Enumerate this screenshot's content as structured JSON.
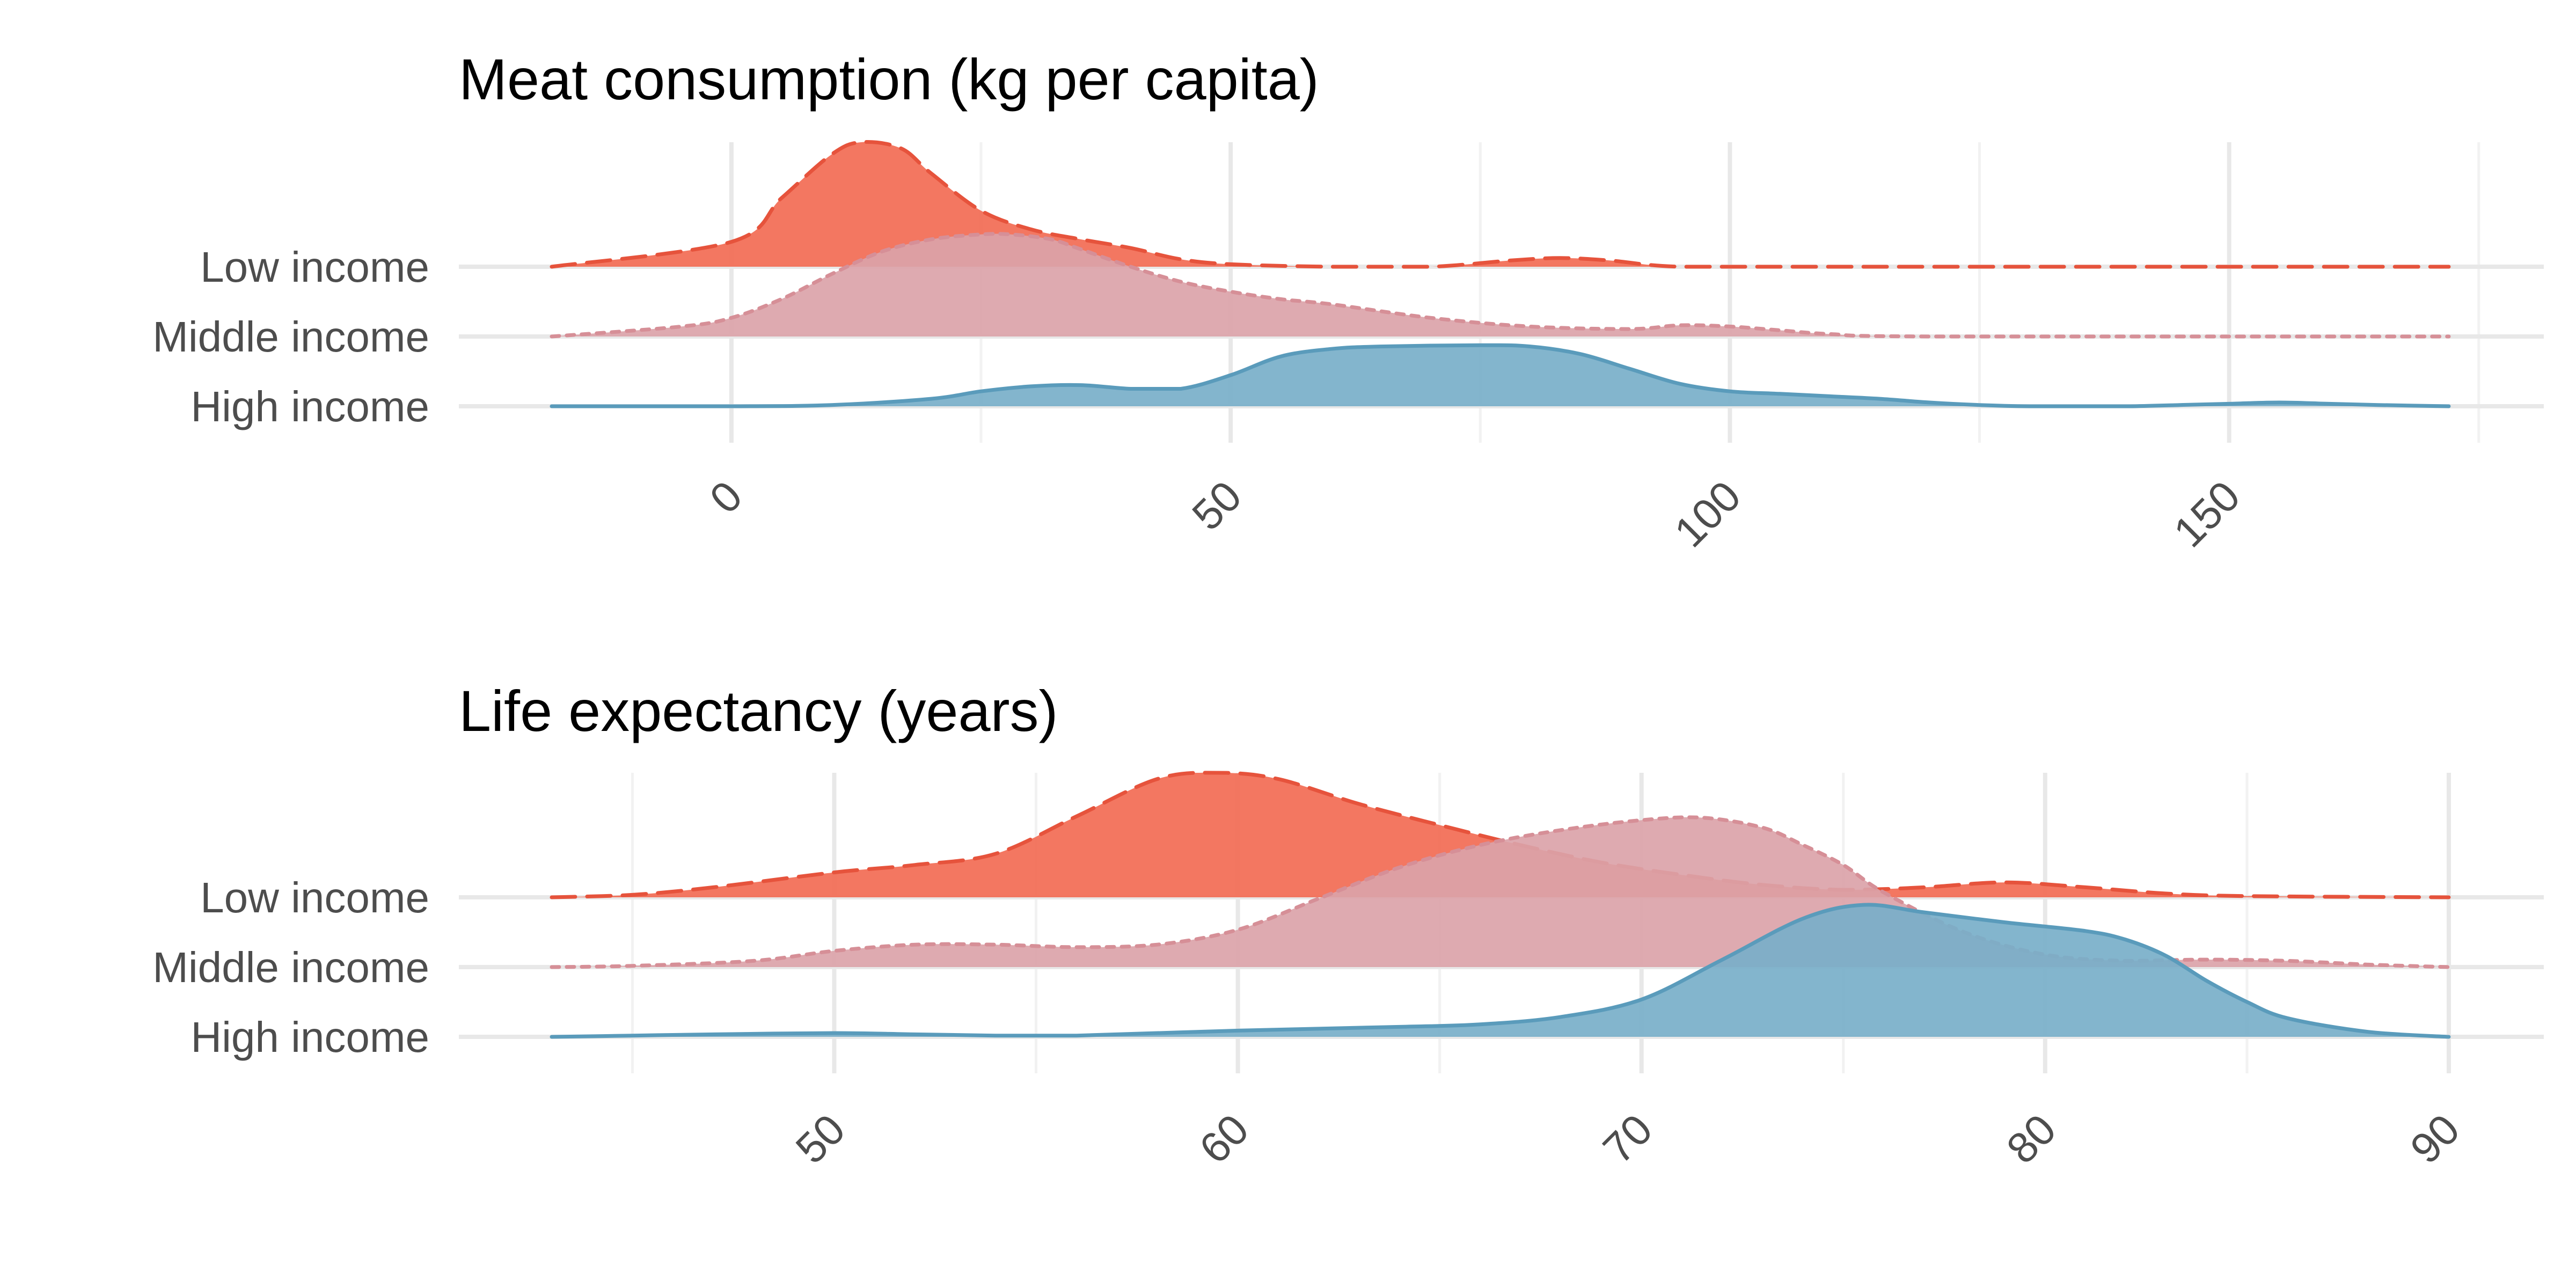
{
  "chart_data": [
    {
      "type": "ridgeline",
      "title": "Meat consumption (kg per capita)",
      "xlabel": "",
      "ylabel": "",
      "xlim": [
        -18,
        172
      ],
      "x_ticks": [
        0,
        50,
        100,
        150
      ],
      "x_tick_labels": [
        "0",
        "50",
        "100",
        "150"
      ],
      "minor_ticks": [
        25,
        75,
        125,
        175
      ],
      "grid": true,
      "categories": [
        "Low income",
        "Middle income",
        "High income"
      ],
      "series": [
        {
          "category": "Low income",
          "color": "#f26b54",
          "line_color": "#e6533c",
          "line_style": "dashed",
          "x": [
            -18,
            0,
            5,
            10,
            13,
            17,
            20,
            25,
            30,
            35,
            40,
            45,
            50,
            60,
            70,
            78,
            83,
            88,
            95,
            110,
            130,
            150,
            172
          ],
          "density": [
            0.0,
            0.2,
            0.55,
            0.9,
            1.0,
            0.95,
            0.75,
            0.45,
            0.3,
            0.22,
            0.15,
            0.06,
            0.02,
            0.0,
            0.0,
            0.05,
            0.07,
            0.05,
            0.0,
            0.0,
            0.0,
            0.0,
            0.0
          ]
        },
        {
          "category": "Middle income",
          "color": "#dba3a9",
          "line_color": "#d68f97",
          "line_style": "dotted",
          "x": [
            -18,
            -5,
            0,
            5,
            10,
            15,
            20,
            25,
            28,
            32,
            35,
            40,
            45,
            50,
            55,
            60,
            70,
            80,
            90,
            95,
            100,
            105,
            110,
            120,
            172
          ],
          "density": [
            0.0,
            0.08,
            0.15,
            0.3,
            0.5,
            0.68,
            0.78,
            0.82,
            0.82,
            0.78,
            0.7,
            0.56,
            0.44,
            0.36,
            0.3,
            0.26,
            0.15,
            0.08,
            0.06,
            0.09,
            0.08,
            0.05,
            0.02,
            0.0,
            0.0
          ]
        },
        {
          "category": "High income",
          "color": "#78afc9",
          "line_color": "#5a9bbb",
          "line_style": "solid",
          "x": [
            -18,
            0,
            10,
            20,
            25,
            30,
            35,
            40,
            45,
            50,
            55,
            60,
            65,
            75,
            80,
            85,
            90,
            95,
            100,
            105,
            110,
            115,
            120,
            125,
            130,
            135,
            140,
            145,
            150,
            155,
            160,
            165,
            172
          ],
          "density": [
            0.0,
            0.0,
            0.01,
            0.06,
            0.12,
            0.16,
            0.17,
            0.14,
            0.14,
            0.25,
            0.4,
            0.46,
            0.48,
            0.49,
            0.48,
            0.42,
            0.3,
            0.18,
            0.12,
            0.1,
            0.08,
            0.06,
            0.03,
            0.01,
            0.0,
            0.0,
            0.0,
            0.01,
            0.02,
            0.03,
            0.02,
            0.01,
            0.0
          ]
        }
      ]
    },
    {
      "type": "ridgeline",
      "title": "Life expectancy (years)",
      "xlabel": "",
      "ylabel": "",
      "xlim": [
        43,
        90
      ],
      "x_ticks": [
        50,
        60,
        70,
        80,
        90
      ],
      "x_tick_labels": [
        "50",
        "60",
        "70",
        "80",
        "90"
      ],
      "minor_ticks": [
        45,
        55,
        65,
        75,
        85
      ],
      "grid": true,
      "categories": [
        "Low income",
        "Middle income",
        "High income"
      ],
      "series": [
        {
          "category": "Low income",
          "color": "#f26b54",
          "line_color": "#e6533c",
          "line_style": "dashed",
          "x": [
            43,
            45,
            47,
            50,
            52,
            54,
            56,
            58,
            59.5,
            61,
            63,
            65,
            67,
            69,
            71,
            73,
            75,
            77,
            79,
            81,
            83,
            85,
            90
          ],
          "density": [
            0.0,
            0.02,
            0.08,
            0.2,
            0.26,
            0.35,
            0.65,
            0.95,
            1.0,
            0.95,
            0.75,
            0.58,
            0.42,
            0.28,
            0.18,
            0.1,
            0.06,
            0.08,
            0.12,
            0.08,
            0.03,
            0.01,
            0.0
          ]
        },
        {
          "category": "Middle income",
          "color": "#dba3a9",
          "line_color": "#d68f97",
          "line_style": "dotted",
          "x": [
            43,
            45,
            48,
            50,
            52,
            54,
            56,
            58,
            60,
            62,
            64,
            66,
            68,
            70,
            71.5,
            73,
            74,
            75,
            76,
            78,
            80,
            82,
            84,
            86,
            88,
            90
          ],
          "density": [
            0.0,
            0.01,
            0.05,
            0.13,
            0.18,
            0.18,
            0.16,
            0.18,
            0.3,
            0.55,
            0.8,
            0.98,
            1.1,
            1.18,
            1.2,
            1.12,
            0.98,
            0.82,
            0.6,
            0.28,
            0.1,
            0.05,
            0.06,
            0.05,
            0.02,
            0.0
          ]
        },
        {
          "category": "High income",
          "color": "#78afc9",
          "line_color": "#5a9bbb",
          "line_style": "solid",
          "x": [
            43,
            45,
            47,
            50,
            52,
            54,
            56,
            60,
            64,
            66,
            68,
            70,
            72,
            74,
            75.5,
            77,
            79,
            81,
            82,
            83,
            84,
            85,
            86,
            88,
            90
          ],
          "density": [
            0.0,
            0.01,
            0.02,
            0.03,
            0.02,
            0.01,
            0.01,
            0.05,
            0.08,
            0.1,
            0.16,
            0.3,
            0.62,
            0.95,
            1.06,
            1.0,
            0.92,
            0.85,
            0.78,
            0.65,
            0.45,
            0.28,
            0.15,
            0.04,
            0.0
          ]
        }
      ]
    }
  ]
}
